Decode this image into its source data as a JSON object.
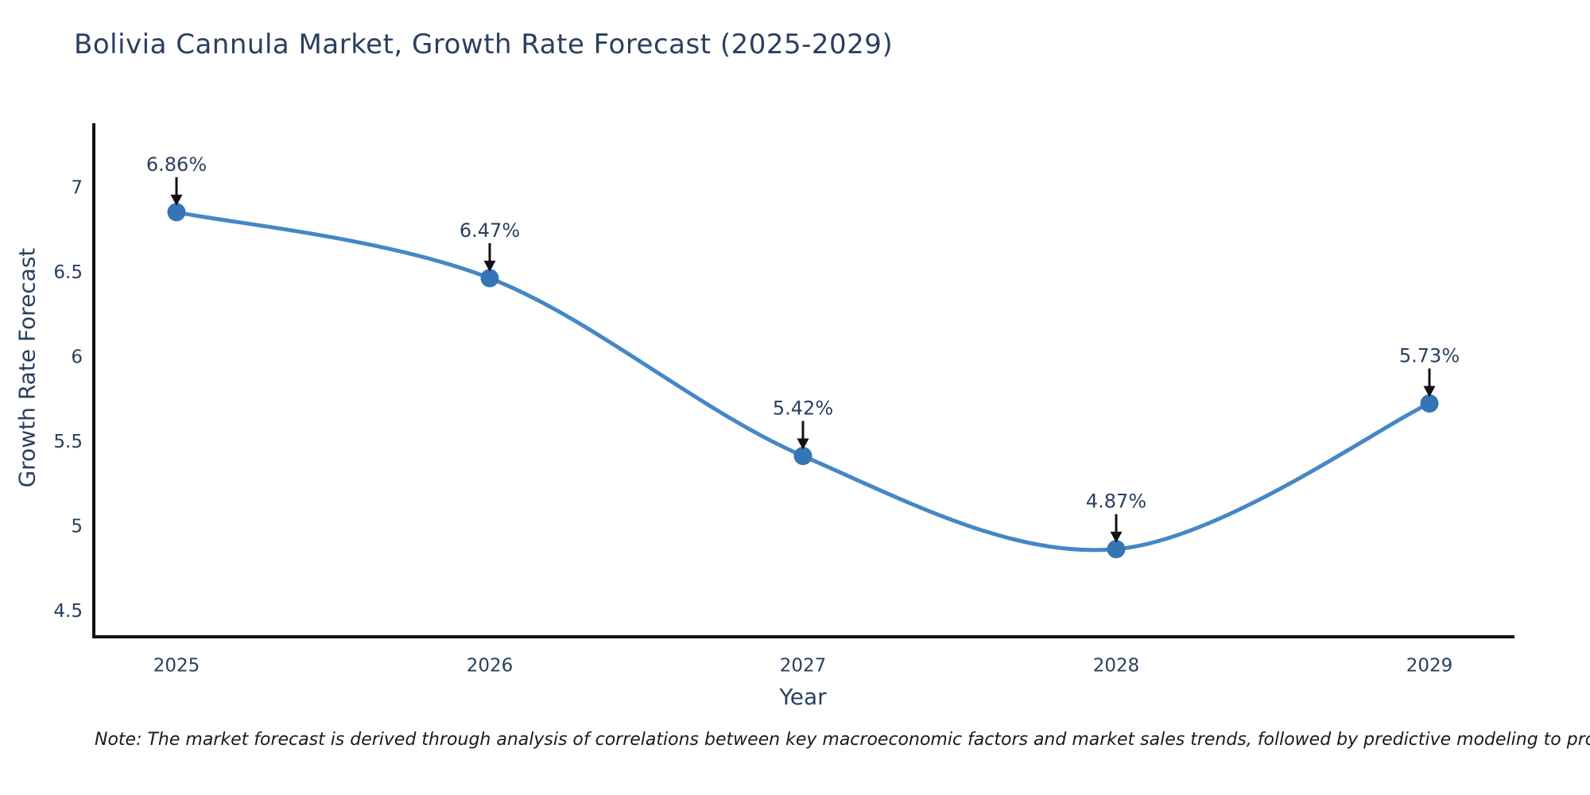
{
  "title": "Bolivia Cannula Market, Growth Rate Forecast (2025-2029)",
  "note": "Note: The market forecast is derived through analysis of correlations between key macroeconomic factors and market sales trends, followed by predictive modeling to project future sales",
  "chart_data": {
    "type": "line",
    "line_shape": "spline",
    "title": "Bolivia Cannula Market, Growth Rate Forecast (2025-2029)",
    "xlabel": "Year",
    "ylabel": "Growth Rate Forecast",
    "categories": [
      "2025",
      "2026",
      "2027",
      "2028",
      "2029"
    ],
    "values": [
      6.86,
      6.47,
      5.42,
      4.87,
      5.73
    ],
    "point_labels": [
      "6.86%",
      "6.47%",
      "5.42%",
      "4.87%",
      "5.73%"
    ],
    "yticks": [
      7,
      6.5,
      6,
      5.5,
      5,
      4.5
    ],
    "ylim": [
      4.34,
      7.39
    ],
    "grid": false,
    "legend": "none",
    "annotations": "black arrows pointing down onto each marker",
    "colors": {
      "line": "#4587c7",
      "marker": "#3575b5",
      "axis": "#111111",
      "text": "#2a3f5f",
      "annotation_text": "#2a3f5f",
      "annotation_arrow": "#111111",
      "note_text": "#1a1a1a",
      "background": "#ffffff"
    }
  }
}
